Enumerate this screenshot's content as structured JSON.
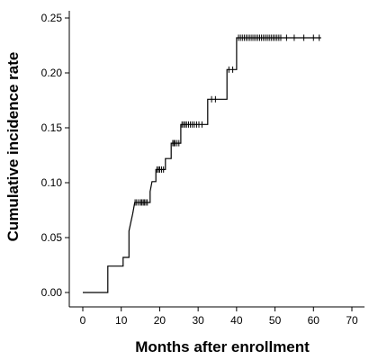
{
  "chart_data": {
    "type": "line",
    "step": true,
    "title": "",
    "xlabel": "Months after enrollment",
    "ylabel": "Cumulative incidence rate",
    "xlim": [
      0,
      70
    ],
    "ylim": [
      0,
      0.25
    ],
    "x_ticks": [
      0,
      10,
      20,
      30,
      40,
      50,
      60,
      70
    ],
    "x_tick_labels": [
      "0",
      "10",
      "20",
      "30",
      "40",
      "50",
      "60",
      "70"
    ],
    "y_ticks": [
      0,
      0.05,
      0.1,
      0.15,
      0.2,
      0.25
    ],
    "y_tick_labels": [
      "0.00",
      "0.05",
      "0.10",
      "0.15",
      "0.20",
      "0.25"
    ],
    "grid": false,
    "legend": "none",
    "colors": {
      "line": "#000000",
      "axis": "#000000"
    },
    "series": [
      {
        "steps": [
          [
            0,
            0.0
          ],
          [
            6.5,
            0.0
          ],
          [
            6.5,
            0.024
          ],
          [
            10.5,
            0.024
          ],
          [
            10.5,
            0.032
          ],
          [
            12,
            0.032
          ],
          [
            12,
            0.056
          ],
          [
            12.5,
            0.064
          ],
          [
            13,
            0.072
          ],
          [
            13.5,
            0.082
          ],
          [
            17.5,
            0.082
          ],
          [
            17.5,
            0.092
          ],
          [
            18,
            0.101
          ],
          [
            19,
            0.101
          ],
          [
            19,
            0.112
          ],
          [
            21.5,
            0.112
          ],
          [
            21.5,
            0.122
          ],
          [
            23,
            0.122
          ],
          [
            23,
            0.136
          ],
          [
            25.5,
            0.136
          ],
          [
            25.5,
            0.153
          ],
          [
            32.5,
            0.153
          ],
          [
            32.5,
            0.176
          ],
          [
            37.5,
            0.176
          ],
          [
            37.5,
            0.203
          ],
          [
            40,
            0.203
          ],
          [
            40,
            0.232
          ],
          [
            62,
            0.232
          ]
        ],
        "censored": [
          [
            13.6,
            0.082
          ],
          [
            14,
            0.082
          ],
          [
            14.5,
            0.082
          ],
          [
            15,
            0.082
          ],
          [
            15.3,
            0.082
          ],
          [
            15.7,
            0.082
          ],
          [
            16,
            0.082
          ],
          [
            16.4,
            0.082
          ],
          [
            16.8,
            0.082
          ],
          [
            19.3,
            0.112
          ],
          [
            19.7,
            0.112
          ],
          [
            20,
            0.112
          ],
          [
            20.5,
            0.112
          ],
          [
            21,
            0.112
          ],
          [
            23.4,
            0.136
          ],
          [
            23.7,
            0.136
          ],
          [
            24,
            0.136
          ],
          [
            24.5,
            0.136
          ],
          [
            25,
            0.136
          ],
          [
            25.8,
            0.153
          ],
          [
            26.2,
            0.153
          ],
          [
            26.6,
            0.153
          ],
          [
            27,
            0.153
          ],
          [
            27.5,
            0.153
          ],
          [
            28,
            0.153
          ],
          [
            28.5,
            0.153
          ],
          [
            29,
            0.153
          ],
          [
            29.6,
            0.153
          ],
          [
            30.2,
            0.153
          ],
          [
            31,
            0.153
          ],
          [
            33.5,
            0.176
          ],
          [
            34.5,
            0.176
          ],
          [
            38,
            0.203
          ],
          [
            39,
            0.203
          ],
          [
            40.5,
            0.232
          ],
          [
            41,
            0.232
          ],
          [
            41.5,
            0.232
          ],
          [
            42,
            0.232
          ],
          [
            42.5,
            0.232
          ],
          [
            43,
            0.232
          ],
          [
            43.5,
            0.232
          ],
          [
            44,
            0.232
          ],
          [
            44.5,
            0.232
          ],
          [
            45,
            0.232
          ],
          [
            45.5,
            0.232
          ],
          [
            46,
            0.232
          ],
          [
            46.5,
            0.232
          ],
          [
            47,
            0.232
          ],
          [
            47.5,
            0.232
          ],
          [
            48,
            0.232
          ],
          [
            48.5,
            0.232
          ],
          [
            49,
            0.232
          ],
          [
            49.5,
            0.232
          ],
          [
            50,
            0.232
          ],
          [
            50.5,
            0.232
          ],
          [
            51,
            0.232
          ],
          [
            51.5,
            0.232
          ],
          [
            53,
            0.232
          ],
          [
            55,
            0.232
          ],
          [
            57.5,
            0.232
          ],
          [
            60,
            0.232
          ],
          [
            61.5,
            0.232
          ]
        ]
      }
    ]
  }
}
